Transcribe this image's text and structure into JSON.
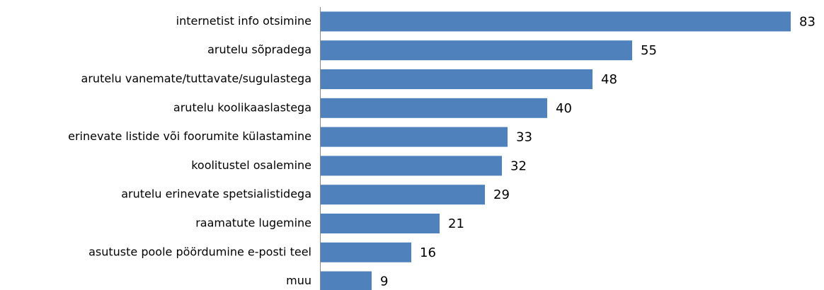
{
  "chart_data": {
    "type": "bar",
    "orientation": "horizontal",
    "categories": [
      "internetist info otsimine",
      "arutelu sõpradega",
      "arutelu vanemate/tuttavate/sugulastega",
      "arutelu koolikaaslastega",
      "erinevate listide või foorumite külastamine",
      "koolitustel osalemine",
      "arutelu erinevate spetsialistidega",
      "raamatute lugemine",
      "asutuste poole pöördumine e-posti teel",
      "muu"
    ],
    "values": [
      83,
      55,
      48,
      40,
      33,
      32,
      29,
      21,
      16,
      9
    ],
    "color": "#4f81bd"
  }
}
